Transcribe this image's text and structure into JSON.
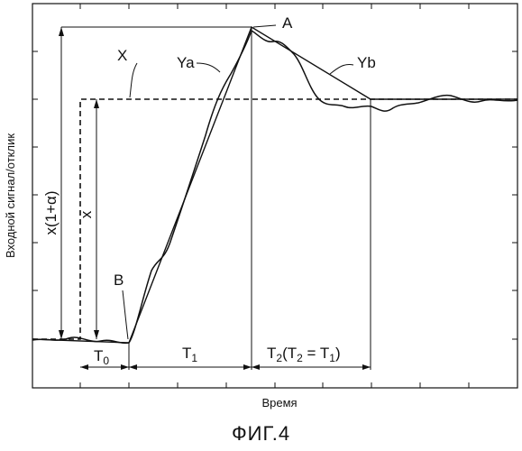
{
  "axes": {
    "ylabel": "Входной сигнал/отклик",
    "xlabel": "Время"
  },
  "labels": {
    "X": "X",
    "Ya": "Ya",
    "Yb": "Yb",
    "A": "A",
    "B": "B",
    "x_alpha": "x(1+α)",
    "x": "x",
    "T0": "T",
    "T0_sub": "0",
    "T1": "T",
    "T1_sub": "1",
    "T2_T": "T",
    "T2_sub": "2",
    "T2_open": "(T",
    "T2_eq": "2",
    "T2_mid": " = T",
    "T2_sub1": "1",
    "T2_close": ")"
  },
  "caption": "ФИГ.4"
}
